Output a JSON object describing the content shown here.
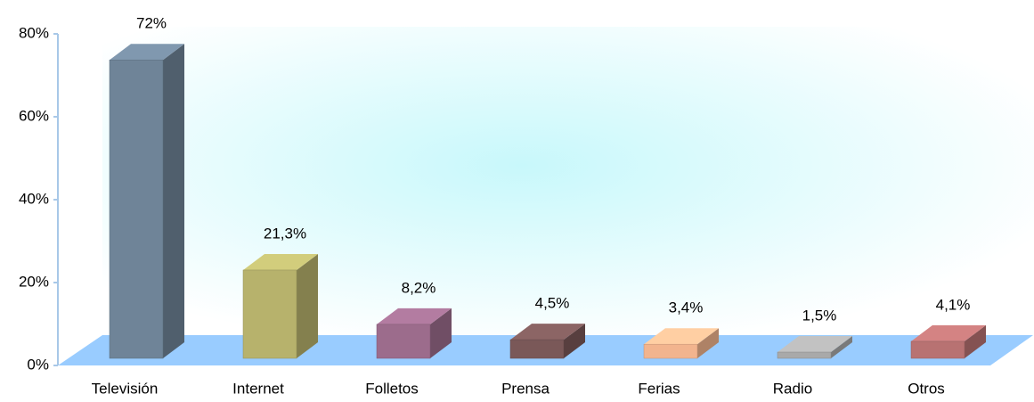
{
  "chart_data": {
    "type": "bar",
    "categories": [
      "Televisión",
      "Internet",
      "Folletos",
      "Prensa",
      "Ferias",
      "Radio",
      "Otros"
    ],
    "values": [
      72,
      21.3,
      8.2,
      4.5,
      3.4,
      1.5,
      4.1
    ],
    "value_labels": [
      "72%",
      "21,3%",
      "8,2%",
      "4,5%",
      "3,4%",
      "1,5%",
      "4,1%"
    ],
    "colors": [
      "#6f8498",
      "#b7b26c",
      "#9c6c8c",
      "#7a5858",
      "#f2b48e",
      "#a9a9a9",
      "#b87272"
    ],
    "ylim": [
      0,
      80
    ],
    "yticks": [
      {
        "value": 0,
        "label": "0%"
      },
      {
        "value": 20,
        "label": "20%"
      },
      {
        "value": 40,
        "label": "40%"
      },
      {
        "value": 60,
        "label": "60%"
      },
      {
        "value": 80,
        "label": "80%"
      }
    ]
  }
}
